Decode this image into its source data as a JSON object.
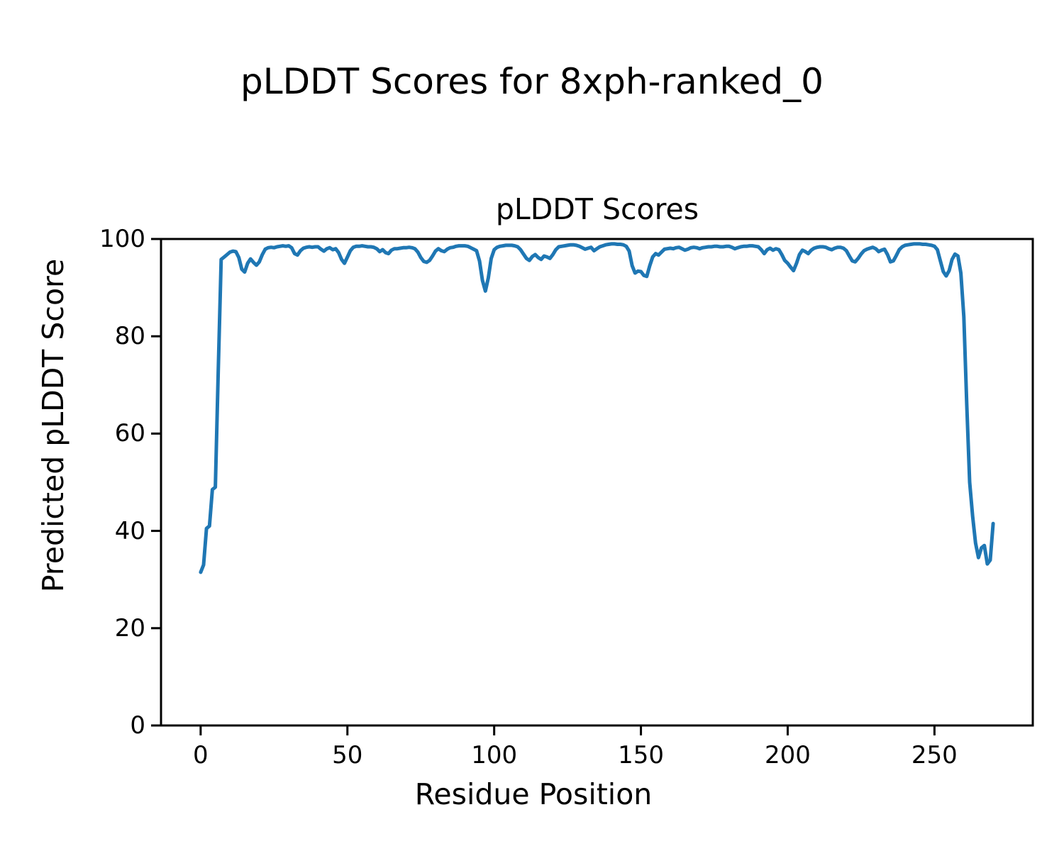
{
  "figure": {
    "suptitle": "pLDDT Scores for 8xph-ranked_0",
    "background_color": "#ffffff",
    "text_color": "#000000"
  },
  "chart_data": {
    "type": "line",
    "title": "pLDDT Scores",
    "xlabel": "Residue Position",
    "ylabel": "Predicted pLDDT Score",
    "xlim": [
      -13.5,
      283.5
    ],
    "ylim": [
      0,
      100
    ],
    "x_ticks": [
      0,
      50,
      100,
      150,
      200,
      250
    ],
    "y_ticks": [
      0,
      20,
      40,
      60,
      80,
      100
    ],
    "grid": false,
    "legend": "none",
    "line_color": "#1f77b4",
    "axis_color": "#000000",
    "series": [
      {
        "name": "pLDDT",
        "x_start": 0,
        "x_step": 1,
        "values": [
          31.5,
          33.0,
          40.5,
          41.0,
          48.5,
          49.0,
          73.0,
          95.8,
          96.3,
          96.8,
          97.3,
          97.5,
          97.4,
          96.2,
          93.8,
          93.2,
          95.0,
          95.9,
          95.2,
          94.6,
          95.3,
          96.8,
          97.9,
          98.2,
          98.3,
          98.2,
          98.4,
          98.5,
          98.6,
          98.5,
          98.6,
          98.2,
          97.0,
          96.7,
          97.6,
          98.1,
          98.3,
          98.4,
          98.3,
          98.4,
          98.4,
          97.9,
          97.5,
          98.0,
          98.2,
          97.8,
          98.0,
          97.2,
          95.8,
          95.0,
          96.3,
          97.6,
          98.3,
          98.5,
          98.5,
          98.6,
          98.5,
          98.4,
          98.4,
          98.3,
          98.0,
          97.4,
          97.8,
          97.2,
          97.0,
          97.7,
          98.0,
          98.0,
          98.1,
          98.2,
          98.2,
          98.3,
          98.2,
          98.0,
          97.3,
          96.2,
          95.4,
          95.2,
          95.6,
          96.5,
          97.5,
          98.0,
          97.6,
          97.4,
          97.9,
          98.2,
          98.3,
          98.5,
          98.6,
          98.6,
          98.6,
          98.5,
          98.2,
          97.9,
          97.6,
          95.5,
          91.5,
          89.3,
          92.0,
          96.0,
          97.8,
          98.3,
          98.5,
          98.6,
          98.7,
          98.7,
          98.7,
          98.6,
          98.4,
          97.8,
          96.9,
          96.0,
          95.6,
          96.4,
          96.8,
          96.2,
          95.8,
          96.5,
          96.3,
          96.0,
          96.8,
          97.8,
          98.4,
          98.5,
          98.6,
          98.7,
          98.8,
          98.8,
          98.7,
          98.5,
          98.2,
          97.9,
          98.1,
          98.3,
          97.6,
          98.0,
          98.4,
          98.6,
          98.8,
          98.9,
          99.0,
          99.0,
          98.9,
          98.9,
          98.8,
          98.5,
          97.5,
          94.5,
          93.0,
          93.4,
          93.3,
          92.5,
          92.3,
          94.5,
          96.3,
          97.0,
          96.7,
          97.3,
          97.9,
          98.0,
          98.1,
          98.0,
          98.2,
          98.3,
          98.0,
          97.7,
          97.9,
          98.2,
          98.3,
          98.2,
          98.0,
          98.2,
          98.3,
          98.4,
          98.4,
          98.5,
          98.5,
          98.4,
          98.4,
          98.5,
          98.5,
          98.3,
          98.0,
          98.2,
          98.4,
          98.5,
          98.5,
          98.6,
          98.6,
          98.5,
          98.4,
          97.8,
          97.0,
          97.8,
          98.1,
          97.7,
          98.0,
          97.8,
          96.8,
          95.6,
          95.0,
          94.2,
          93.5,
          95.0,
          96.8,
          97.7,
          97.4,
          97.0,
          97.7,
          98.1,
          98.3,
          98.4,
          98.4,
          98.3,
          98.0,
          97.8,
          98.1,
          98.3,
          98.3,
          98.1,
          97.6,
          96.5,
          95.5,
          95.3,
          96.0,
          96.9,
          97.6,
          97.9,
          98.1,
          98.3,
          98.0,
          97.4,
          97.7,
          97.9,
          96.8,
          95.3,
          95.5,
          96.6,
          97.8,
          98.4,
          98.7,
          98.8,
          98.9,
          99.0,
          99.0,
          99.0,
          98.9,
          98.9,
          98.8,
          98.7,
          98.5,
          97.8,
          95.5,
          93.3,
          92.4,
          93.5,
          95.8,
          96.9,
          96.5,
          93.0,
          84.0,
          66.0,
          50.0,
          43.0,
          37.5,
          34.5,
          36.5,
          37.0,
          33.2,
          34.0,
          41.5
        ]
      }
    ]
  }
}
